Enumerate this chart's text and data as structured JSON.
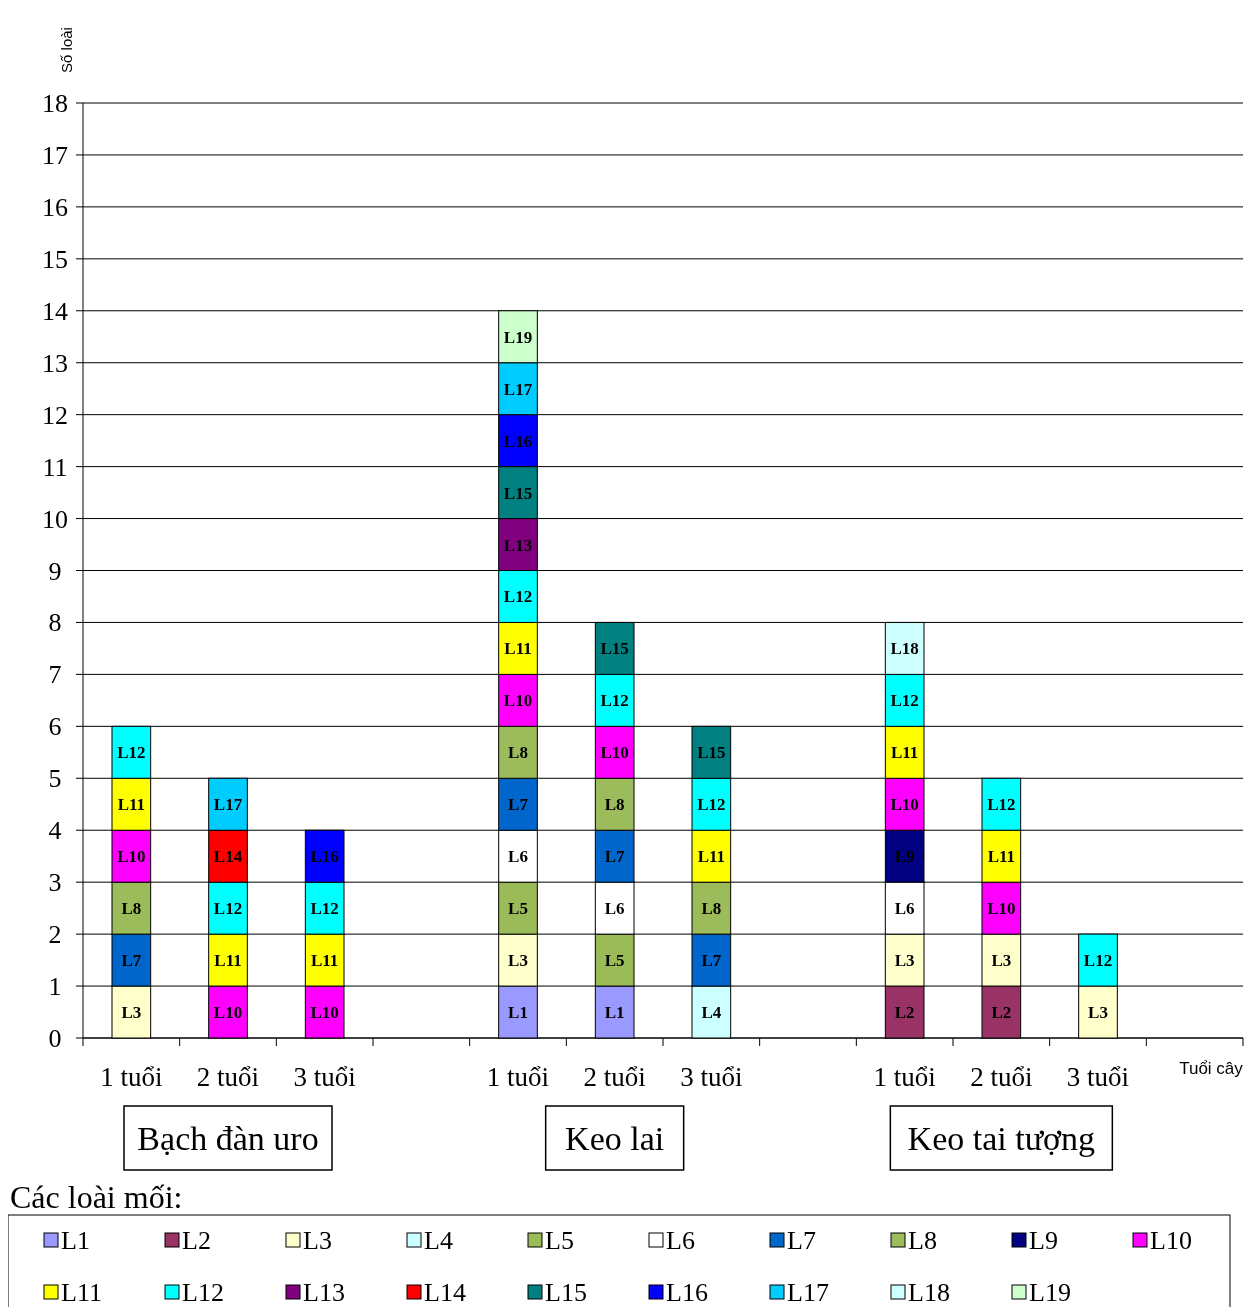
{
  "chart_data": {
    "type": "bar",
    "stacked": true,
    "ylabel": "Số loài",
    "xlabel": "Tuổi cây",
    "legend_title": "Các loài mối:",
    "legend": "bottom",
    "grid": "y",
    "categories": [
      "1 tuổi",
      "2 tuổi",
      "3 tuổi",
      null,
      "1 tuổi",
      "2 tuổi",
      "3 tuổi",
      null,
      "1 tuổi",
      "2 tuổi",
      "3 tuổi",
      null
    ],
    "ylim": [
      0,
      18
    ],
    "yticks": [
      0,
      1,
      2,
      3,
      4,
      5,
      6,
      7,
      8,
      9,
      10,
      11,
      12,
      13,
      14,
      15,
      16,
      17,
      18
    ],
    "annotations": [
      "Bạch đàn uro",
      "Keo lai",
      "Keo tai tượng"
    ],
    "series": [
      {
        "name": "L1",
        "color": "#9999ff",
        "values": [
          null,
          null,
          null,
          null,
          1,
          1,
          null,
          null,
          null,
          null,
          null,
          null
        ]
      },
      {
        "name": "L2",
        "color": "#993366",
        "values": [
          null,
          null,
          null,
          null,
          null,
          null,
          null,
          null,
          1,
          1,
          null,
          null
        ]
      },
      {
        "name": "L3",
        "color": "#ffffcc",
        "values": [
          1,
          null,
          null,
          null,
          1,
          null,
          null,
          null,
          1,
          1,
          1,
          null
        ]
      },
      {
        "name": "L4",
        "color": "#ccffff",
        "values": [
          null,
          null,
          null,
          null,
          null,
          null,
          1,
          null,
          null,
          null,
          null,
          null
        ]
      },
      {
        "name": "L5",
        "color": "#9bbb59",
        "values": [
          null,
          null,
          null,
          null,
          1,
          1,
          null,
          null,
          null,
          null,
          null,
          null
        ]
      },
      {
        "name": "L6",
        "color": "#ffffff",
        "values": [
          null,
          null,
          null,
          null,
          1,
          1,
          null,
          null,
          1,
          null,
          null,
          null
        ]
      },
      {
        "name": "L7",
        "color": "#0066cc",
        "values": [
          1,
          null,
          null,
          null,
          1,
          1,
          1,
          null,
          null,
          null,
          null,
          null
        ]
      },
      {
        "name": "L8",
        "color": "#9cbb5a",
        "values": [
          1,
          null,
          null,
          null,
          1,
          1,
          1,
          null,
          null,
          null,
          null,
          null
        ]
      },
      {
        "name": "L9",
        "color": "#000080",
        "values": [
          null,
          null,
          null,
          null,
          null,
          null,
          null,
          null,
          1,
          null,
          null,
          null
        ]
      },
      {
        "name": "L10",
        "color": "#ff00ff",
        "values": [
          1,
          1,
          1,
          null,
          1,
          1,
          null,
          null,
          1,
          1,
          null,
          null
        ]
      },
      {
        "name": "L11",
        "color": "#ffff00",
        "values": [
          1,
          1,
          1,
          null,
          1,
          null,
          1,
          null,
          1,
          1,
          null,
          null
        ]
      },
      {
        "name": "L12",
        "color": "#00ffff",
        "values": [
          1,
          1,
          1,
          null,
          1,
          1,
          1,
          null,
          1,
          1,
          1,
          null
        ]
      },
      {
        "name": "L13",
        "color": "#800080",
        "values": [
          null,
          null,
          null,
          null,
          1,
          null,
          null,
          null,
          null,
          null,
          null,
          null
        ]
      },
      {
        "name": "L14",
        "color": "#ff0000",
        "values": [
          null,
          1,
          null,
          null,
          null,
          null,
          null,
          null,
          null,
          null,
          null,
          null
        ]
      },
      {
        "name": "L15",
        "color": "#008080",
        "values": [
          null,
          null,
          null,
          null,
          1,
          1,
          1,
          null,
          null,
          null,
          null,
          null
        ]
      },
      {
        "name": "L16",
        "color": "#0000ff",
        "values": [
          null,
          null,
          1,
          null,
          1,
          null,
          null,
          null,
          null,
          null,
          null,
          null
        ]
      },
      {
        "name": "L17",
        "color": "#00ccff",
        "values": [
          null,
          1,
          null,
          null,
          1,
          null,
          null,
          null,
          null,
          null,
          null,
          null
        ]
      },
      {
        "name": "L18",
        "color": "#ccfffe",
        "values": [
          null,
          null,
          null,
          null,
          null,
          null,
          null,
          null,
          1,
          null,
          null,
          null
        ]
      },
      {
        "name": "L19",
        "color": "#ccffcc",
        "values": [
          null,
          null,
          null,
          null,
          1,
          null,
          null,
          null,
          null,
          null,
          null,
          null
        ]
      }
    ]
  }
}
